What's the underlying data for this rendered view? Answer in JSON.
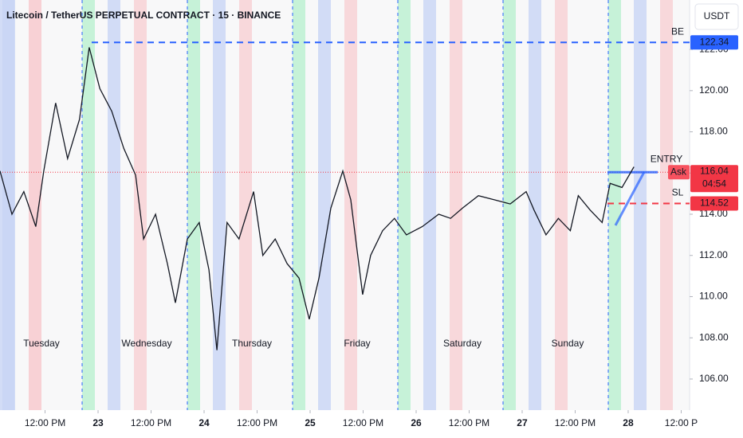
{
  "chart_data": {
    "type": "line",
    "title": "Litecoin / TetherUS PERPETUAL CONTRACT · 15 · BINANCE",
    "currency": "USDT",
    "color": "#131722",
    "x": [
      1.8,
      4.5,
      7.2,
      9.9,
      11.7,
      14.4,
      17.1,
      19.8,
      22.0,
      24.4,
      27.1,
      29.8,
      32.5,
      34.3,
      37.0,
      39.7,
      41.5,
      44.2,
      46.9,
      49.1,
      50.9,
      53.2,
      55.9,
      59.2,
      61.3,
      64.1,
      66.8,
      69.5,
      71.8,
      74.0,
      76.7,
      79.4,
      81.2,
      83.9,
      85.7,
      88.4,
      91.1,
      93.8,
      97.4,
      101.1,
      103.8,
      106.5,
      110.1,
      113.7,
      117.3,
      120.9,
      122.7,
      125.4,
      128.2,
      130.9,
      132.7,
      135.4,
      138.1,
      139.9,
      142.6,
      145.3
    ],
    "values": [
      116.1,
      114.0,
      115.1,
      113.4,
      116.1,
      119.4,
      116.7,
      118.6,
      122.1,
      120.1,
      119.0,
      117.2,
      115.9,
      112.8,
      114.0,
      111.6,
      109.7,
      112.8,
      113.6,
      111.3,
      107.4,
      113.6,
      112.8,
      115.1,
      112.0,
      112.8,
      111.6,
      110.9,
      108.9,
      110.9,
      114.3,
      116.1,
      114.7,
      110.1,
      112.0,
      113.2,
      113.8,
      113.0,
      113.4,
      114.0,
      113.8,
      114.3,
      114.9,
      114.7,
      114.5,
      115.1,
      114.2,
      113.0,
      113.8,
      113.2,
      114.9,
      114.2,
      113.6,
      115.5,
      115.3,
      116.3
    ],
    "xlim": [
      1.8,
      157.9
    ],
    "ylim": [
      104.49,
      124.4
    ],
    "yticks": [
      {
        "value": 106,
        "label": "106.00"
      },
      {
        "value": 108,
        "label": "108.00"
      },
      {
        "value": 110,
        "label": "110.00"
      },
      {
        "value": 112,
        "label": "112.00"
      },
      {
        "value": 114,
        "label": "114.00"
      },
      {
        "value": 116,
        "label": "116.00"
      },
      {
        "value": 118,
        "label": "118.00"
      },
      {
        "value": 120,
        "label": "120.00"
      },
      {
        "value": 122,
        "label": "122.00"
      }
    ],
    "xticks": [
      {
        "value": 12,
        "label": "12:00 PM"
      },
      {
        "value": 24,
        "label": "23"
      },
      {
        "value": 36,
        "label": "12:00 PM"
      },
      {
        "value": 48,
        "label": "24"
      },
      {
        "value": 60,
        "label": "12:00 PM"
      },
      {
        "value": 72,
        "label": "25"
      },
      {
        "value": 84,
        "label": "12:00 PM"
      },
      {
        "value": 96,
        "label": "26"
      },
      {
        "value": 108,
        "label": "12:00 PM"
      },
      {
        "value": 120,
        "label": "27"
      },
      {
        "value": 132,
        "label": "12:00 PM"
      },
      {
        "value": 144,
        "label": "28"
      },
      {
        "value": 156,
        "label": "12:00 P"
      }
    ],
    "day_labels": [
      "Tuesday",
      "Wednesday",
      "Thursday",
      "Friday",
      "Saturday",
      "Sunday"
    ],
    "levels": [
      {
        "label": "BE",
        "value": 122.34,
        "color": "#2962ff"
      },
      {
        "label": "ENTRY",
        "value": 116.04,
        "color": "#2962ff"
      },
      {
        "label": "SL",
        "value": 114.52,
        "color": "#f23645"
      }
    ],
    "ask_label": "Ask",
    "countdown": "04:54"
  }
}
